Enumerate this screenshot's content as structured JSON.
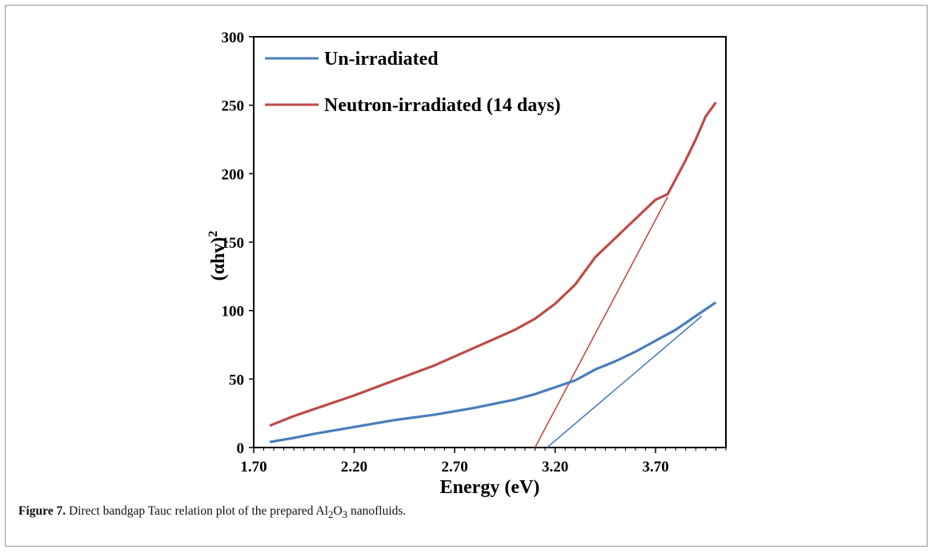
{
  "chart_data": {
    "type": "line",
    "xlabel": "Energy (eV)",
    "ylabel": "(αhv)",
    "ylabel_sup": "2",
    "xlim": [
      1.7,
      4.05
    ],
    "ylim": [
      0,
      300
    ],
    "x_ticks": [
      "1.70",
      "2.20",
      "2.70",
      "3.20",
      "3.70"
    ],
    "y_ticks": [
      "0",
      "50",
      "100",
      "150",
      "200",
      "250",
      "300"
    ],
    "legend_position": "top-left",
    "grid": false,
    "series": [
      {
        "name": "Un-irradiated",
        "color": "#4a7ebb",
        "x": [
          1.78,
          1.9,
          2.0,
          2.2,
          2.4,
          2.6,
          2.8,
          3.0,
          3.1,
          3.2,
          3.3,
          3.35,
          3.4,
          3.5,
          3.6,
          3.7,
          3.8,
          3.9,
          4.0
        ],
        "y": [
          4,
          7,
          10,
          15,
          20,
          24,
          29,
          35,
          39,
          44,
          49,
          53,
          57,
          63,
          70,
          78,
          86,
          96,
          106
        ]
      },
      {
        "name": "Neutron-irradiated (14 days)",
        "color": "#be4b48",
        "x": [
          1.78,
          1.9,
          2.0,
          2.2,
          2.4,
          2.6,
          2.8,
          3.0,
          3.1,
          3.2,
          3.3,
          3.4,
          3.5,
          3.6,
          3.7,
          3.76,
          3.8,
          3.85,
          3.9,
          3.95,
          4.0
        ],
        "y": [
          16,
          23,
          28,
          38,
          49,
          60,
          73,
          86,
          94,
          105,
          119,
          139,
          153,
          167,
          181,
          185,
          196,
          210,
          225,
          242,
          252
        ]
      }
    ],
    "fit_lines": [
      {
        "color": "#4a7ebb",
        "x": [
          3.16,
          3.93
        ],
        "y": [
          0,
          96
        ]
      },
      {
        "color": "#be4b48",
        "x": [
          3.1,
          3.76
        ],
        "y": [
          0,
          183
        ]
      }
    ]
  },
  "caption": {
    "label": "Figure 7.",
    "text_before": " Direct bandgap Tauc relation plot of the prepared Al",
    "sub1": "2",
    "mid": "O",
    "sub2": "3",
    "text_after": " nanofluids."
  }
}
